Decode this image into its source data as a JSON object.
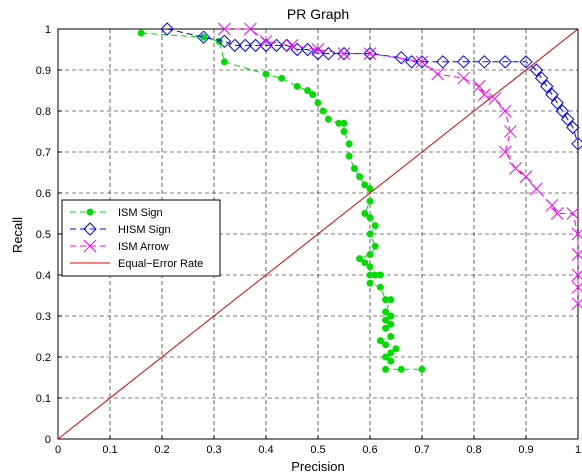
{
  "chart_data": {
    "type": "line",
    "title": "PR Graph",
    "xlabel": "Precision",
    "ylabel": "Recall",
    "xlim": [
      0,
      1
    ],
    "ylim": [
      0,
      1
    ],
    "xticks": [
      "0",
      "0.1",
      "0.2",
      "0.3",
      "0.4",
      "0.5",
      "0.6",
      "0.7",
      "0.8",
      "0.9",
      "1"
    ],
    "yticks": [
      "0",
      "0.1",
      "0.2",
      "0.3",
      "0.4",
      "0.5",
      "0.6",
      "0.7",
      "0.8",
      "0.9",
      "1"
    ],
    "grid": true,
    "legend_position": "left-middle",
    "series": [
      {
        "name": "ISM Sign",
        "color": "#00dd00",
        "marker": "dot",
        "line_style": "dashed",
        "points": [
          [
            0.16,
            0.99
          ],
          [
            0.28,
            0.98
          ],
          [
            0.31,
            0.97
          ],
          [
            0.32,
            0.92
          ],
          [
            0.4,
            0.89
          ],
          [
            0.43,
            0.88
          ],
          [
            0.46,
            0.86
          ],
          [
            0.48,
            0.85
          ],
          [
            0.49,
            0.84
          ],
          [
            0.5,
            0.82
          ],
          [
            0.51,
            0.8
          ],
          [
            0.52,
            0.78
          ],
          [
            0.54,
            0.77
          ],
          [
            0.55,
            0.77
          ],
          [
            0.55,
            0.75
          ],
          [
            0.56,
            0.72
          ],
          [
            0.56,
            0.69
          ],
          [
            0.57,
            0.66
          ],
          [
            0.58,
            0.64
          ],
          [
            0.59,
            0.62
          ],
          [
            0.6,
            0.61
          ],
          [
            0.6,
            0.58
          ],
          [
            0.59,
            0.55
          ],
          [
            0.6,
            0.54
          ],
          [
            0.61,
            0.52
          ],
          [
            0.6,
            0.5
          ],
          [
            0.61,
            0.47
          ],
          [
            0.6,
            0.45
          ],
          [
            0.58,
            0.44
          ],
          [
            0.59,
            0.43
          ],
          [
            0.6,
            0.42
          ],
          [
            0.6,
            0.4
          ],
          [
            0.61,
            0.4
          ],
          [
            0.62,
            0.4
          ],
          [
            0.6,
            0.38
          ],
          [
            0.62,
            0.37
          ],
          [
            0.63,
            0.34
          ],
          [
            0.64,
            0.34
          ],
          [
            0.63,
            0.31
          ],
          [
            0.64,
            0.3
          ],
          [
            0.63,
            0.29
          ],
          [
            0.64,
            0.28
          ],
          [
            0.63,
            0.27
          ],
          [
            0.64,
            0.25
          ],
          [
            0.62,
            0.24
          ],
          [
            0.63,
            0.23
          ],
          [
            0.65,
            0.22
          ],
          [
            0.64,
            0.21
          ],
          [
            0.63,
            0.2
          ],
          [
            0.64,
            0.19
          ],
          [
            0.63,
            0.17
          ],
          [
            0.66,
            0.17
          ],
          [
            0.7,
            0.17
          ]
        ]
      },
      {
        "name": "HISM Sign",
        "color": "#0000ff",
        "marker": "diamond",
        "line_style": "dashed",
        "points": [
          [
            0.21,
            1.0
          ],
          [
            0.28,
            0.98
          ],
          [
            0.32,
            0.97
          ],
          [
            0.34,
            0.96
          ],
          [
            0.36,
            0.96
          ],
          [
            0.38,
            0.96
          ],
          [
            0.4,
            0.96
          ],
          [
            0.42,
            0.96
          ],
          [
            0.44,
            0.96
          ],
          [
            0.46,
            0.95
          ],
          [
            0.48,
            0.95
          ],
          [
            0.5,
            0.94
          ],
          [
            0.52,
            0.94
          ],
          [
            0.55,
            0.94
          ],
          [
            0.6,
            0.94
          ],
          [
            0.66,
            0.93
          ],
          [
            0.68,
            0.92
          ],
          [
            0.7,
            0.92
          ],
          [
            0.74,
            0.92
          ],
          [
            0.78,
            0.92
          ],
          [
            0.82,
            0.92
          ],
          [
            0.86,
            0.92
          ],
          [
            0.9,
            0.92
          ],
          [
            0.92,
            0.9
          ],
          [
            0.93,
            0.88
          ],
          [
            0.94,
            0.86
          ],
          [
            0.95,
            0.84
          ],
          [
            0.96,
            0.82
          ],
          [
            0.97,
            0.8
          ],
          [
            0.98,
            0.78
          ],
          [
            0.99,
            0.76
          ],
          [
            1.0,
            0.72
          ]
        ]
      },
      {
        "name": "ISM Arrow",
        "color": "#ff00ff",
        "marker": "x",
        "line_style": "dashed",
        "points": [
          [
            0.32,
            1.0
          ],
          [
            0.37,
            1.0
          ],
          [
            0.4,
            0.97
          ],
          [
            0.45,
            0.96
          ],
          [
            0.5,
            0.95
          ],
          [
            0.55,
            0.94
          ],
          [
            0.6,
            0.94
          ],
          [
            0.7,
            0.92
          ],
          [
            0.73,
            0.89
          ],
          [
            0.78,
            0.88
          ],
          [
            0.81,
            0.86
          ],
          [
            0.82,
            0.84
          ],
          [
            0.84,
            0.83
          ],
          [
            0.86,
            0.8
          ],
          [
            0.87,
            0.75
          ],
          [
            0.86,
            0.7
          ],
          [
            0.88,
            0.66
          ],
          [
            0.9,
            0.64
          ],
          [
            0.92,
            0.61
          ],
          [
            0.95,
            0.57
          ],
          [
            0.96,
            0.55
          ],
          [
            0.99,
            0.55
          ],
          [
            1.0,
            0.5
          ],
          [
            1.0,
            0.45
          ],
          [
            1.0,
            0.4
          ],
          [
            1.0,
            0.37
          ],
          [
            1.0,
            0.33
          ]
        ]
      },
      {
        "name": "Equal−Error Rate",
        "color": "#dd0000",
        "marker": "none",
        "line_style": "solid",
        "points": [
          [
            0,
            0
          ],
          [
            1,
            1
          ]
        ]
      }
    ]
  }
}
